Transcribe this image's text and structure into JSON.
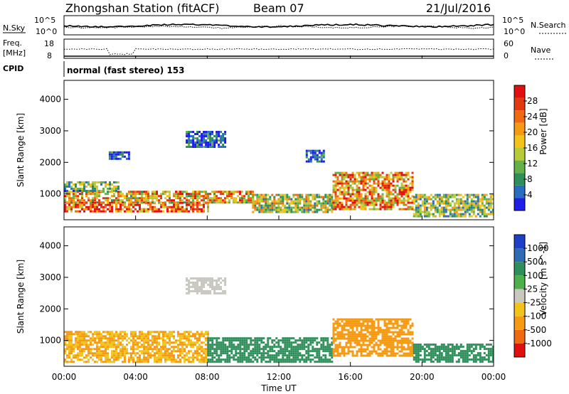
{
  "header": {
    "station": "Zhongshan Station (fitACF)",
    "beam": "Beam 07",
    "date": "21/Jul/2016"
  },
  "nsky_panel": {
    "left_label": "N.Sky",
    "right_label": "N.Search",
    "left_ticks": [
      "10^5",
      "10^0"
    ],
    "right_ticks": [
      "10^5",
      "10^0"
    ]
  },
  "freq_panel": {
    "left_label_1": "Freq.",
    "left_label_2": "[MHz]",
    "left_ticks": [
      "18",
      "8"
    ],
    "right_label": "Nave",
    "right_ticks": [
      "60",
      "0"
    ]
  },
  "cpid": {
    "label": "CPID",
    "mode_text": "normal (fast stereo) 153"
  },
  "x_axis": {
    "label": "Time UT",
    "ticks": [
      "00:00",
      "04:00",
      "08:00",
      "12:00",
      "16:00",
      "20:00",
      "00:00"
    ]
  },
  "chart_data": [
    {
      "type": "heatmap",
      "quantity": "power",
      "ylabel": "Slant Range [km]",
      "yticks": [
        1000,
        2000,
        3000,
        4000
      ],
      "ylim": [
        180,
        4600
      ],
      "xlim_hours": [
        0,
        24
      ],
      "colorbar_label": "Power [dB]",
      "colorbar_ticks": [
        "4",
        "8",
        "12",
        "16",
        "20",
        "24",
        "28"
      ],
      "colorbar_colors": [
        "#1e1ee6",
        "#2a6cc0",
        "#2f8f5a",
        "#66b04a",
        "#b8c93a",
        "#f2c31a",
        "#f59a12",
        "#ef6a10",
        "#e23a10",
        "#e01010"
      ],
      "regions": [
        {
          "t0": 0.0,
          "t1": 8.0,
          "r0": 450,
          "r1": 750,
          "level": 26
        },
        {
          "t0": 0.0,
          "t1": 10.5,
          "r0": 750,
          "r1": 1100,
          "level": 20
        },
        {
          "t0": 0.0,
          "t1": 3.0,
          "r0": 1100,
          "r1": 1400,
          "level": 12
        },
        {
          "t0": 2.5,
          "t1": 3.6,
          "r0": 2100,
          "r1": 2350,
          "level": 6
        },
        {
          "t0": 6.8,
          "t1": 9.0,
          "r0": 2500,
          "r1": 3000,
          "level": 6
        },
        {
          "t0": 10.5,
          "t1": 15.0,
          "r0": 450,
          "r1": 1000,
          "level": 16
        },
        {
          "t0": 15.0,
          "t1": 19.5,
          "r0": 500,
          "r1": 1700,
          "level": 22
        },
        {
          "t0": 13.5,
          "t1": 14.5,
          "r0": 2000,
          "r1": 2400,
          "level": 6
        },
        {
          "t0": 19.5,
          "t1": 24.0,
          "r0": 300,
          "r1": 1000,
          "level": 14
        }
      ]
    },
    {
      "type": "heatmap",
      "quantity": "velocity",
      "ylabel": "Slant Range [km]",
      "yticks": [
        1000,
        2000,
        3000,
        4000
      ],
      "ylim": [
        180,
        4600
      ],
      "xlim_hours": [
        0,
        24
      ],
      "colorbar_label": "Velocity [m s^-1]",
      "colorbar_ticks": [
        "1000",
        "500",
        "100",
        "25",
        "-25",
        "-100",
        "-500",
        "-1000"
      ],
      "colorbar_colors": [
        "#1e3fc8",
        "#2f6ab4",
        "#2f8f5a",
        "#4fb04a",
        "#c8c8c0",
        "#f2c31a",
        "#f59a12",
        "#ef6a10",
        "#e01010"
      ],
      "regions": [
        {
          "t0": 0.0,
          "t1": 8.0,
          "r0": 300,
          "r1": 1300,
          "level": -100
        },
        {
          "t0": 6.8,
          "t1": 9.0,
          "r0": 2500,
          "r1": 3000,
          "level": 10
        },
        {
          "t0": 8.0,
          "t1": 15.0,
          "r0": 300,
          "r1": 1100,
          "level": 150
        },
        {
          "t0": 15.0,
          "t1": 19.5,
          "r0": 500,
          "r1": 1700,
          "level": -200
        },
        {
          "t0": 19.5,
          "t1": 24.0,
          "r0": 300,
          "r1": 900,
          "level": 150
        }
      ]
    }
  ]
}
